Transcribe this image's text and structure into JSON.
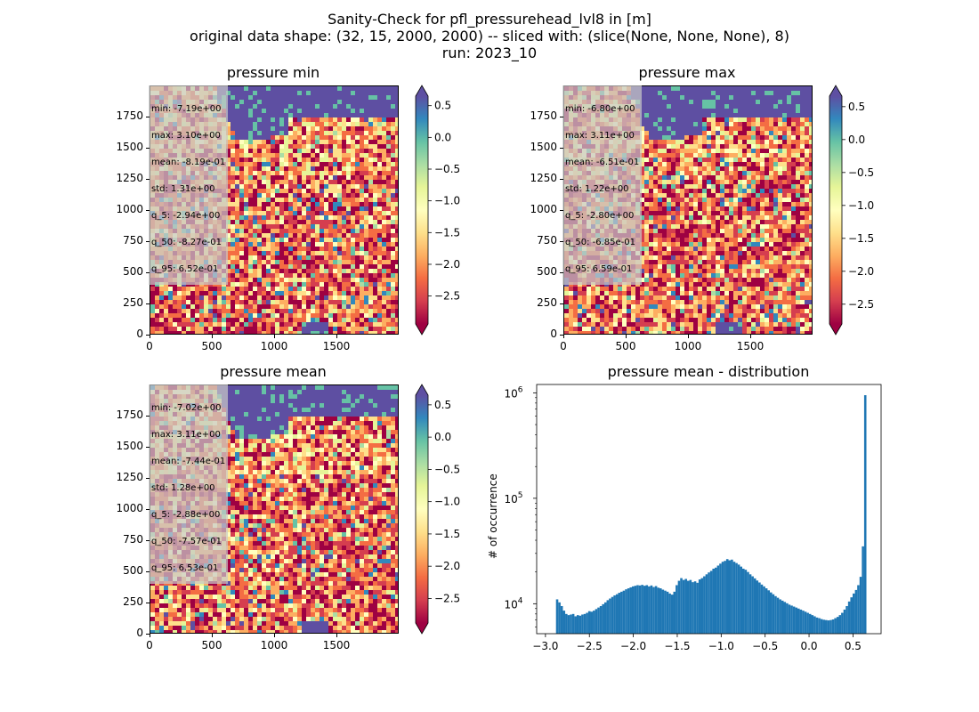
{
  "figure": {
    "title_lines": [
      "Sanity-Check for pfl_pressurehead_lvl8 in [m]",
      "original data shape: (32, 15, 2000, 2000) -- sliced with: (slice(None, None, None), 8)",
      "run: 2023_10"
    ]
  },
  "colors": {
    "cmap_spectral": [
      "#9e0142",
      "#d53e4f",
      "#f46d43",
      "#fdae61",
      "#fee08b",
      "#ffffbf",
      "#e6f598",
      "#abdda4",
      "#66c2a5",
      "#3288bd",
      "#5e4fa2"
    ],
    "histogram_bar": "#1f77b4",
    "ocean": "#5e4fa2"
  },
  "maps": [
    {
      "title": "pressure min",
      "stats": [
        "min: -7.19e+00",
        "max: 3.10e+00",
        "mean: -8.19e-01",
        "std: 1.31e+00",
        "q_5: -2.94e+00",
        "q_50: -8.27e-01",
        "q_95: 6.52e-01"
      ],
      "x_ticks": [
        "0",
        "500",
        "1000",
        "1500"
      ],
      "y_ticks": [
        "0",
        "250",
        "500",
        "750",
        "1000",
        "1250",
        "1500",
        "1750"
      ],
      "colorbar_ticks": [
        "0.5",
        "0.0",
        "−0.5",
        "−1.0",
        "−1.5",
        "−2.0",
        "−2.5"
      ]
    },
    {
      "title": "pressure max",
      "stats": [
        "min: -6.80e+00",
        "max: 3.11e+00",
        "mean: -6.51e-01",
        "std: 1.22e+00",
        "q_5: -2.80e+00",
        "q_50: -6.85e-01",
        "q_95: 6.59e-01"
      ],
      "x_ticks": [
        "0",
        "500",
        "1000",
        "1500"
      ],
      "y_ticks": [
        "0",
        "250",
        "500",
        "750",
        "1000",
        "1250",
        "1500",
        "1750"
      ],
      "colorbar_ticks": [
        "0.5",
        "0.0",
        "−0.5",
        "−1.0",
        "−1.5",
        "−2.0",
        "−2.5"
      ]
    },
    {
      "title": "pressure mean",
      "stats": [
        "min: -7.02e+00",
        "max: 3.11e+00",
        "mean: -7.44e-01",
        "std: 1.28e+00",
        "q_5: -2.88e+00",
        "q_50: -7.57e-01",
        "q_95: 6.53e-01"
      ],
      "x_ticks": [
        "0",
        "500",
        "1000",
        "1500"
      ],
      "y_ticks": [
        "0",
        "250",
        "500",
        "750",
        "1000",
        "1250",
        "1500",
        "1750"
      ],
      "colorbar_ticks": [
        "0.5",
        "0.0",
        "−0.5",
        "−1.0",
        "−1.5",
        "−2.0",
        "−2.5"
      ]
    }
  ],
  "chart_data": [
    {
      "type": "heatmap",
      "title": "pressure min",
      "x_range": [
        0,
        2000
      ],
      "y_range": [
        0,
        2000
      ],
      "colorbar_range": [
        -2.94,
        0.65
      ],
      "colorbar_ticks": [
        0.5,
        0.0,
        -0.5,
        -1.0,
        -1.5,
        -2.0,
        -2.5
      ],
      "colormap": "Spectral",
      "colorbar_extend": "both"
    },
    {
      "type": "heatmap",
      "title": "pressure max",
      "x_range": [
        0,
        2000
      ],
      "y_range": [
        0,
        2000
      ],
      "colorbar_range": [
        -2.8,
        0.66
      ],
      "colorbar_ticks": [
        0.5,
        0.0,
        -0.5,
        -1.0,
        -1.5,
        -2.0,
        -2.5
      ],
      "colormap": "Spectral",
      "colorbar_extend": "both"
    },
    {
      "type": "heatmap",
      "title": "pressure mean",
      "x_range": [
        0,
        2000
      ],
      "y_range": [
        0,
        2000
      ],
      "colorbar_range": [
        -2.88,
        0.65
      ],
      "colorbar_ticks": [
        0.5,
        0.0,
        -0.5,
        -1.0,
        -1.5,
        -2.0,
        -2.5
      ],
      "colormap": "Spectral",
      "colorbar_extend": "both"
    },
    {
      "type": "bar",
      "title": "pressure mean - distribution",
      "ylabel": "# of occurrence",
      "yscale": "log",
      "xlim": [
        -3.1,
        0.82
      ],
      "ylim": [
        5200,
        1200000
      ],
      "x_ticks": [
        "−3.0",
        "−2.5",
        "−2.0",
        "−1.5",
        "−1.0",
        "−0.5",
        "0.0",
        "0.5"
      ],
      "x_tick_values": [
        -3.0,
        -2.5,
        -2.0,
        -1.5,
        -1.0,
        -0.5,
        0.0,
        0.5
      ],
      "y_ticks": [
        "10^4",
        "10^5",
        "10^6"
      ],
      "y_tick_values": [
        10000,
        100000,
        1000000
      ],
      "bin_range": [
        -2.88,
        0.653
      ],
      "counts": [
        11000,
        10300,
        9500,
        8600,
        8000,
        7800,
        7900,
        8000,
        7600,
        7800,
        7700,
        7900,
        8000,
        8200,
        8500,
        8400,
        8600,
        8900,
        9200,
        9500,
        9900,
        10300,
        10800,
        11200,
        11600,
        12000,
        12300,
        12700,
        13000,
        13300,
        13700,
        14000,
        14300,
        14600,
        14800,
        15000,
        14900,
        15100,
        14800,
        15000,
        14600,
        14900,
        14400,
        14700,
        14200,
        14000,
        13600,
        13300,
        13000,
        12500,
        12200,
        13000,
        15000,
        16500,
        17500,
        16800,
        17200,
        16500,
        16800,
        16000,
        16300,
        15800,
        17000,
        17500,
        18200,
        19000,
        19800,
        20500,
        21500,
        22000,
        23000,
        24000,
        25000,
        25500,
        26500,
        25800,
        26200,
        25000,
        24300,
        23500,
        22500,
        21500,
        21000,
        20000,
        19000,
        18200,
        17400,
        16600,
        15900,
        15200,
        14600,
        14000,
        13400,
        12800,
        12300,
        11800,
        11400,
        11000,
        10700,
        10400,
        10100,
        9800,
        9600,
        9400,
        9200,
        9000,
        8800,
        8600,
        8400,
        8200,
        8000,
        7800,
        7600,
        7400,
        7300,
        7150,
        7050,
        7000,
        6950,
        7000,
        7100,
        7300,
        7500,
        7800,
        8200,
        8800,
        9500,
        10500,
        11500,
        12500,
        13500,
        15000,
        18000,
        35000,
        950000
      ]
    }
  ]
}
